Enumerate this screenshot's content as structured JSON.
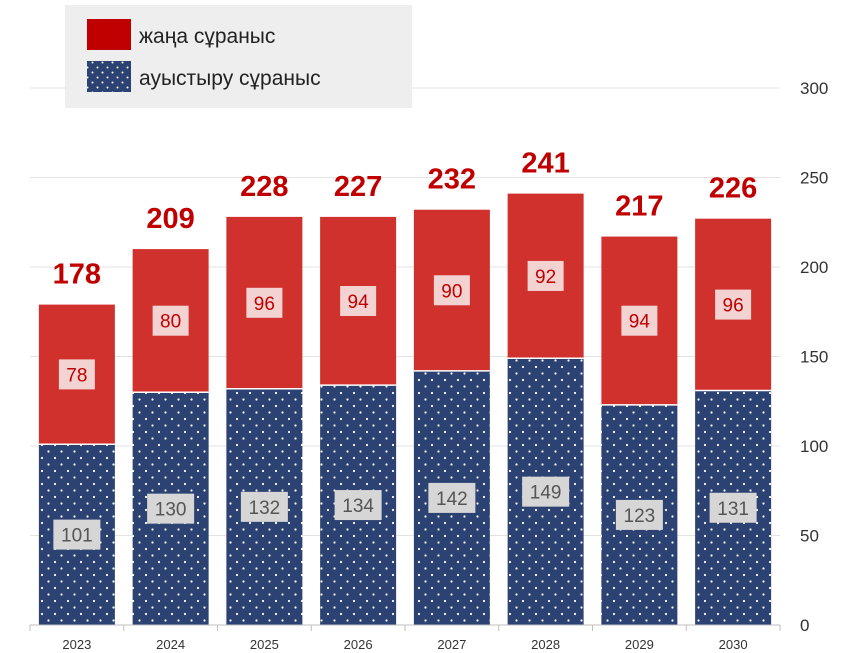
{
  "chart_data": {
    "type": "bar",
    "stacked": true,
    "categories": [
      "2023",
      "2024",
      "2025",
      "2026",
      "2027",
      "2028",
      "2029",
      "2030"
    ],
    "series": [
      {
        "name": "ауыстыру сұраныс",
        "values": [
          101,
          130,
          132,
          134,
          142,
          149,
          123,
          131
        ],
        "color": "#2c4272",
        "pattern": "dotted"
      },
      {
        "name": "жаңа сұраныс",
        "values": [
          78,
          80,
          96,
          94,
          90,
          92,
          94,
          96
        ],
        "color": "#d0312d"
      }
    ],
    "totals": [
      178,
      209,
      228,
      227,
      232,
      241,
      217,
      226
    ],
    "ylim": [
      0,
      300
    ],
    "yticks": [
      0,
      50,
      100,
      150,
      200,
      250,
      300
    ],
    "y_axis_side": "right",
    "grid": true,
    "legend_position": "top-left",
    "title": "",
    "xlabel": "",
    "ylabel": ""
  },
  "colors": {
    "total_label": "#c00000",
    "legend_new": "#c00000",
    "legend_replacement": "#2c4272"
  }
}
